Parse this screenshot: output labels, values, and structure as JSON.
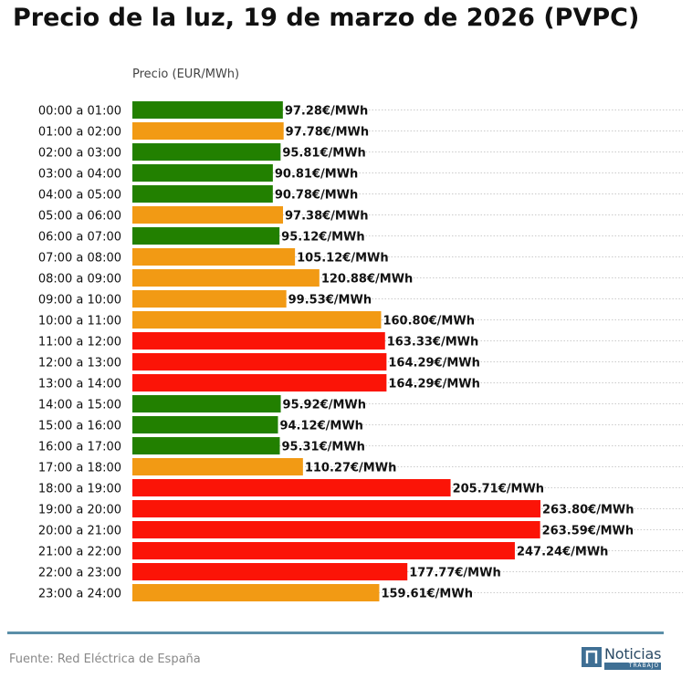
{
  "title": "Precio de la luz, 19 de marzo de 2026 (PVPC)",
  "footer": {
    "source": "Fuente: Red Eléctrica de España",
    "logo_text": "Noticias",
    "logo_sub": "TRABAJO"
  },
  "colors": {
    "low": "#228000",
    "mid": "#f29a14",
    "high": "#fb1407",
    "grid": "#bbbbbb",
    "footer_line": "#5b8fa8"
  },
  "chart_data": {
    "type": "bar",
    "orientation": "horizontal",
    "title": "Precio de la luz, 19 de marzo de 2026 (PVPC)",
    "xlabel": "Precio (EUR/MWh)",
    "ylabel": "",
    "value_suffix": "€/MWh",
    "xlim": [
      0,
      263.8
    ],
    "grid": "horizontal dotted",
    "categories": [
      "00:00 a 01:00",
      "01:00 a 02:00",
      "02:00 a 03:00",
      "03:00 a 04:00",
      "04:00 a 05:00",
      "05:00 a 06:00",
      "06:00 a 07:00",
      "07:00 a 08:00",
      "08:00 a 09:00",
      "09:00 a 10:00",
      "10:00 a 11:00",
      "11:00 a 12:00",
      "12:00 a 13:00",
      "13:00 a 14:00",
      "14:00 a 15:00",
      "15:00 a 16:00",
      "16:00 a 17:00",
      "17:00 a 18:00",
      "18:00 a 19:00",
      "19:00 a 20:00",
      "20:00 a 21:00",
      "21:00 a 22:00",
      "22:00 a 23:00",
      "23:00 a 24:00"
    ],
    "values": [
      97.28,
      97.78,
      95.81,
      90.81,
      90.78,
      97.38,
      95.12,
      105.12,
      120.88,
      99.53,
      160.8,
      163.33,
      164.29,
      164.29,
      95.92,
      94.12,
      95.31,
      110.27,
      205.71,
      263.8,
      263.59,
      247.24,
      177.77,
      159.61
    ],
    "value_labels": [
      "97.28€/MWh",
      "97.78€/MWh",
      "95.81€/MWh",
      "90.81€/MWh",
      "90.78€/MWh",
      "97.38€/MWh",
      "95.12€/MWh",
      "105.12€/MWh",
      "120.88€/MWh",
      "99.53€/MWh",
      "160.80€/MWh",
      "163.33€/MWh",
      "164.29€/MWh",
      "164.29€/MWh",
      "95.92€/MWh",
      "94.12€/MWh",
      "95.31€/MWh",
      "110.27€/MWh",
      "205.71€/MWh",
      "263.80€/MWh",
      "263.59€/MWh",
      "247.24€/MWh",
      "177.77€/MWh",
      "159.61€/MWh"
    ],
    "levels": [
      "low",
      "mid",
      "low",
      "low",
      "low",
      "mid",
      "low",
      "mid",
      "mid",
      "mid",
      "mid",
      "high",
      "high",
      "high",
      "low",
      "low",
      "low",
      "mid",
      "high",
      "high",
      "high",
      "high",
      "high",
      "mid"
    ]
  }
}
